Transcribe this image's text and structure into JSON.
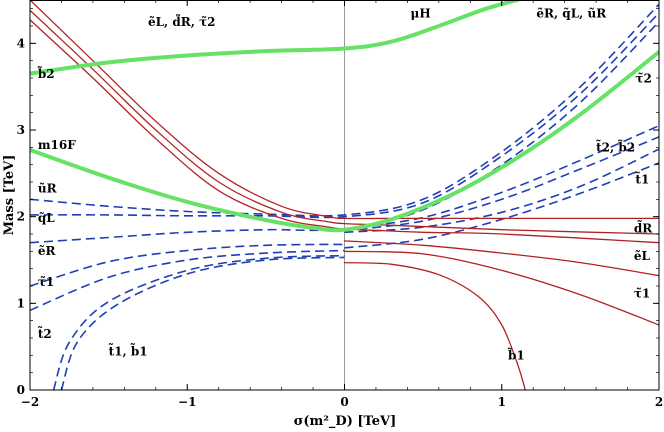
{
  "chart_data": {
    "type": "line",
    "title": "",
    "xlabel": "σ(m²_D) [TeV]",
    "ylabel": "Mass [TeV]",
    "xlim": [
      -2,
      2
    ],
    "ylim": [
      0,
      4.5
    ],
    "xticks": [
      -2,
      -1,
      0,
      1,
      2
    ],
    "xtick_labels": [
      "−2",
      "−1",
      "0",
      "1",
      "2"
    ],
    "yticks": [
      0,
      1,
      2,
      3,
      4
    ],
    "ytick_labels": [
      "0",
      "1",
      "2",
      "3",
      "4"
    ],
    "grid": false,
    "reference_line_x": 0,
    "colors": {
      "red": "#b22222",
      "blue": "#1f3fb5",
      "green": "#66e266",
      "ref": "#9a9a9a"
    },
    "series": [
      {
        "name": "μH",
        "style": "green-thick",
        "x": [
          -2,
          -1.5,
          -1,
          -0.5,
          0,
          0.3,
          0.6,
          0.9,
          1.1
        ],
        "y": [
          3.65,
          3.78,
          3.86,
          3.91,
          3.94,
          4.02,
          4.2,
          4.4,
          4.5
        ]
      },
      {
        "name": "m16F",
        "style": "green-thick",
        "x": [
          -2,
          -1.5,
          -1,
          -0.5,
          -0.2,
          0,
          0.3,
          0.7,
          1.1,
          1.5,
          2.0
        ],
        "y": [
          2.77,
          2.45,
          2.17,
          1.96,
          1.87,
          1.85,
          1.97,
          2.27,
          2.68,
          3.18,
          3.9
        ]
      },
      {
        "name": "red-high-1",
        "style": "red",
        "x": [
          -2,
          -1.6,
          -1.2,
          -0.8,
          -0.4,
          -0.1,
          0,
          0.3,
          1.0,
          2.0
        ],
        "y": [
          4.5,
          3.8,
          3.1,
          2.5,
          2.12,
          2.0,
          1.98,
          1.98,
          1.98,
          1.98
        ]
      },
      {
        "name": "red-high-2",
        "style": "red",
        "x": [
          -2,
          -1.6,
          -1.2,
          -0.8,
          -0.4,
          -0.1,
          0,
          0.3,
          1.0,
          2.0
        ],
        "y": [
          4.38,
          3.7,
          3.0,
          2.4,
          2.05,
          1.94,
          1.92,
          1.9,
          1.85,
          1.8
        ]
      },
      {
        "name": "red-high-3",
        "style": "red",
        "x": [
          -2,
          -1.6,
          -1.2,
          -0.8,
          -0.4,
          -0.1,
          0,
          0.5,
          1.0,
          2.0
        ],
        "y": [
          4.27,
          3.6,
          2.9,
          2.3,
          1.98,
          1.88,
          1.86,
          1.82,
          1.8,
          1.7
        ]
      },
      {
        "name": "red-low-eL",
        "style": "red",
        "x": [
          0,
          0.5,
          1.0,
          1.5,
          2.0
        ],
        "y": [
          1.72,
          1.67,
          1.58,
          1.47,
          1.32
        ]
      },
      {
        "name": "red-low-tau1",
        "style": "red",
        "x": [
          0,
          0.5,
          1.0,
          1.5,
          2.0
        ],
        "y": [
          1.6,
          1.57,
          1.38,
          1.1,
          0.75
        ]
      },
      {
        "name": "red-low-b1",
        "style": "red",
        "x": [
          0,
          0.3,
          0.6,
          0.85,
          1.0,
          1.1,
          1.15
        ],
        "y": [
          1.47,
          1.45,
          1.33,
          1.08,
          0.75,
          0.3,
          0
        ]
      },
      {
        "name": "blue-uR",
        "style": "blue-dash",
        "x": [
          -2,
          -1.5,
          -1,
          -0.5,
          0,
          0.5,
          1.0,
          1.5,
          2.0
        ],
        "y": [
          2.2,
          2.12,
          2.06,
          2.03,
          2.02,
          2.2,
          2.75,
          3.5,
          4.45
        ]
      },
      {
        "name": "blue-qL",
        "style": "blue-dash",
        "x": [
          -2,
          -1.5,
          -1,
          -0.5,
          0,
          0.5,
          1.0,
          1.5,
          2.0
        ],
        "y": [
          2.02,
          2.02,
          2.01,
          2.01,
          2.0,
          2.16,
          2.7,
          3.42,
          4.35
        ]
      },
      {
        "name": "blue-eR",
        "style": "blue-dash",
        "x": [
          -2,
          -1.5,
          -1,
          -0.5,
          0,
          0.5,
          1.0,
          1.5,
          2.0
        ],
        "y": [
          1.7,
          1.76,
          1.82,
          1.85,
          1.86,
          2.08,
          2.6,
          3.32,
          4.25
        ]
      },
      {
        "name": "blue-tau1-neg",
        "style": "blue-dash",
        "x": [
          -2,
          -1.5,
          -1,
          -0.5,
          0
        ],
        "y": [
          1.2,
          1.48,
          1.61,
          1.67,
          1.68
        ]
      },
      {
        "name": "blue-t2",
        "style": "blue-dash",
        "x": [
          -2,
          -1.5,
          -1,
          -0.5,
          0
        ],
        "y": [
          0.92,
          1.3,
          1.5,
          1.58,
          1.61
        ]
      },
      {
        "name": "blue-t1",
        "style": "blue-dash",
        "x": [
          -1.85,
          -1.75,
          -1.5,
          -1,
          -0.5,
          0
        ],
        "y": [
          0,
          0.55,
          1.02,
          1.38,
          1.52,
          1.55
        ]
      },
      {
        "name": "blue-b1",
        "style": "blue-dash",
        "x": [
          -1.8,
          -1.7,
          -1.45,
          -1,
          -0.5,
          0
        ],
        "y": [
          0,
          0.55,
          0.98,
          1.34,
          1.5,
          1.53
        ]
      },
      {
        "name": "blue-t2-pos",
        "style": "blue-dash",
        "x": [
          0,
          0.5,
          1.0,
          1.5,
          2.0
        ],
        "y": [
          1.86,
          1.99,
          2.28,
          2.65,
          3.05
        ]
      },
      {
        "name": "blue-b2-pos",
        "style": "blue-dash",
        "x": [
          0,
          0.5,
          1.0,
          1.5,
          2.0
        ],
        "y": [
          1.84,
          1.95,
          2.2,
          2.55,
          2.92
        ]
      },
      {
        "name": "blue-t1-pos",
        "style": "blue-dash",
        "x": [
          0,
          0.5,
          1.0,
          1.5,
          2.0
        ],
        "y": [
          1.82,
          1.88,
          2.05,
          2.35,
          2.78
        ]
      },
      {
        "name": "blue-tau1-pos",
        "style": "blue-dash",
        "x": [
          0,
          0.5,
          1.0,
          1.5,
          2.0
        ],
        "y": [
          1.64,
          1.74,
          1.97,
          2.27,
          2.62
        ]
      }
    ],
    "annotations": [
      {
        "id": "eL-dR-tau2",
        "text": "ẽL, d̃R, τ̃2",
        "x": -1.25,
        "y": 4.2
      },
      {
        "id": "muH",
        "text": "μH",
        "x": 0.42,
        "y": 4.3
      },
      {
        "id": "eR-qL-uR",
        "text": "ẽR, q̃L, ũR",
        "x": 1.22,
        "y": 4.3
      },
      {
        "id": "b2",
        "text": "b̃2",
        "x": -1.95,
        "y": 3.6
      },
      {
        "id": "tau2-right",
        "text": "τ̃2",
        "x": 1.85,
        "y": 3.55
      },
      {
        "id": "m16F",
        "text": "m16F",
        "x": -1.95,
        "y": 2.78
      },
      {
        "id": "t2-b2",
        "text": "t̃2, b̃2",
        "x": 1.6,
        "y": 2.75
      },
      {
        "id": "t1-right",
        "text": "t̃1",
        "x": 1.85,
        "y": 2.38
      },
      {
        "id": "uR-left",
        "text": "ũR",
        "x": -1.95,
        "y": 2.28
      },
      {
        "id": "qL-left",
        "text": "q̃L",
        "x": -1.95,
        "y": 1.94
      },
      {
        "id": "eR-left",
        "text": "ẽR",
        "x": -1.95,
        "y": 1.56
      },
      {
        "id": "dR-right",
        "text": "d̃R",
        "x": 1.84,
        "y": 1.82
      },
      {
        "id": "eL-right",
        "text": "ẽL",
        "x": 1.84,
        "y": 1.5
      },
      {
        "id": "tau1-left",
        "text": "τ̃1",
        "x": -1.95,
        "y": 1.2
      },
      {
        "id": "tau1-right",
        "text": "τ̃1",
        "x": 1.84,
        "y": 1.07
      },
      {
        "id": "t2-left",
        "text": "t̃2",
        "x": -1.95,
        "y": 0.6
      },
      {
        "id": "t1-b1",
        "text": "t̃1, b̃1",
        "x": -1.5,
        "y": 0.4
      },
      {
        "id": "b1",
        "text": "b̃1",
        "x": 1.04,
        "y": 0.35
      }
    ]
  }
}
